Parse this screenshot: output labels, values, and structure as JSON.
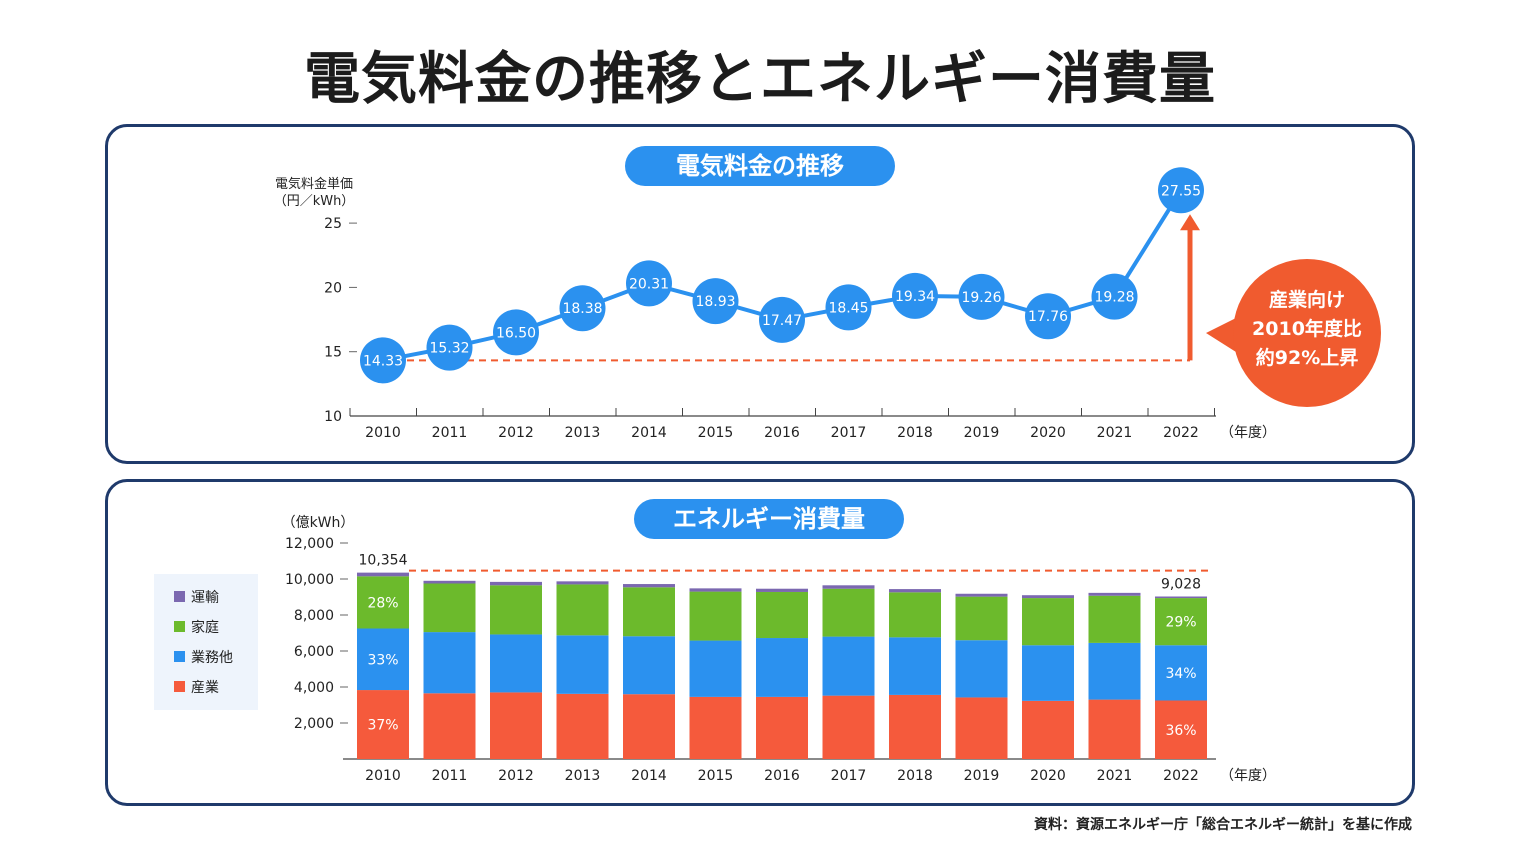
{
  "title": "電気料金の推移とエネルギー消費量",
  "source": "資料：資源エネルギー庁「総合エネルギー統計」を基に作成",
  "colors": {
    "frame": "#1f3a6b",
    "accent": "#2b91ef",
    "orange": "#f05b2f",
    "transport": "#7b68b0",
    "household": "#6cba2c",
    "commercial": "#2b91ef",
    "industry": "#f55a3c"
  },
  "chart_data": [
    {
      "type": "line",
      "title": "電気料金の推移",
      "ylabel": "電気料金単価",
      "yunit": "（円／kWh）",
      "x_unit": "（年度）",
      "x": [
        "2010",
        "2011",
        "2012",
        "2013",
        "2014",
        "2015",
        "2016",
        "2017",
        "2018",
        "2019",
        "2020",
        "2021",
        "2022"
      ],
      "values": [
        14.33,
        15.32,
        16.5,
        18.38,
        20.31,
        18.93,
        17.47,
        18.45,
        19.34,
        19.26,
        17.76,
        19.28,
        27.55
      ],
      "value_labels": [
        "14.33",
        "15.32",
        "16.50",
        "18.38",
        "20.31",
        "18.93",
        "17.47",
        "18.45",
        "19.34",
        "19.26",
        "17.76",
        "19.28",
        "27.55"
      ],
      "yticks": [
        "10",
        "15",
        "20",
        "25"
      ],
      "ylim": [
        10,
        27.55
      ],
      "callout": [
        "産業向け",
        "2010年度比",
        "約92%上昇"
      ]
    },
    {
      "type": "bar",
      "stacked": true,
      "title": "エネルギー消費量",
      "yunit": "（億kWh）",
      "x_unit": "（年度）",
      "categories": [
        "2010",
        "2011",
        "2012",
        "2013",
        "2014",
        "2015",
        "2016",
        "2017",
        "2018",
        "2019",
        "2020",
        "2021",
        "2022"
      ],
      "yticks": [
        "2,000",
        "4,000",
        "6,000",
        "8,000",
        "10,000",
        "12,000"
      ],
      "ylim": [
        0,
        12000
      ],
      "series": [
        {
          "name": "産業",
          "values": [
            3830,
            3650,
            3700,
            3620,
            3600,
            3450,
            3450,
            3520,
            3560,
            3420,
            3230,
            3300,
            3250
          ]
        },
        {
          "name": "業務他",
          "values": [
            3420,
            3400,
            3220,
            3250,
            3220,
            3130,
            3270,
            3280,
            3200,
            3180,
            3090,
            3150,
            3070
          ]
        },
        {
          "name": "家庭",
          "values": [
            2900,
            2700,
            2730,
            2830,
            2720,
            2720,
            2560,
            2660,
            2500,
            2420,
            2620,
            2620,
            2620
          ]
        },
        {
          "name": "運輸",
          "values": [
            204,
            150,
            190,
            170,
            180,
            180,
            180,
            190,
            180,
            160,
            160,
            160,
            88
          ]
        }
      ],
      "legend_order": [
        "運輸",
        "家庭",
        "業務他",
        "産業"
      ],
      "total_labels": [
        {
          "category": "2010",
          "label": "10,354"
        },
        {
          "category": "2022",
          "label": "9,028"
        }
      ],
      "segment_labels": [
        {
          "category": "2010",
          "labels": [
            "37%",
            "33%",
            "28%"
          ]
        },
        {
          "category": "2022",
          "labels": [
            "36%",
            "34%",
            "29%"
          ]
        }
      ]
    }
  ]
}
